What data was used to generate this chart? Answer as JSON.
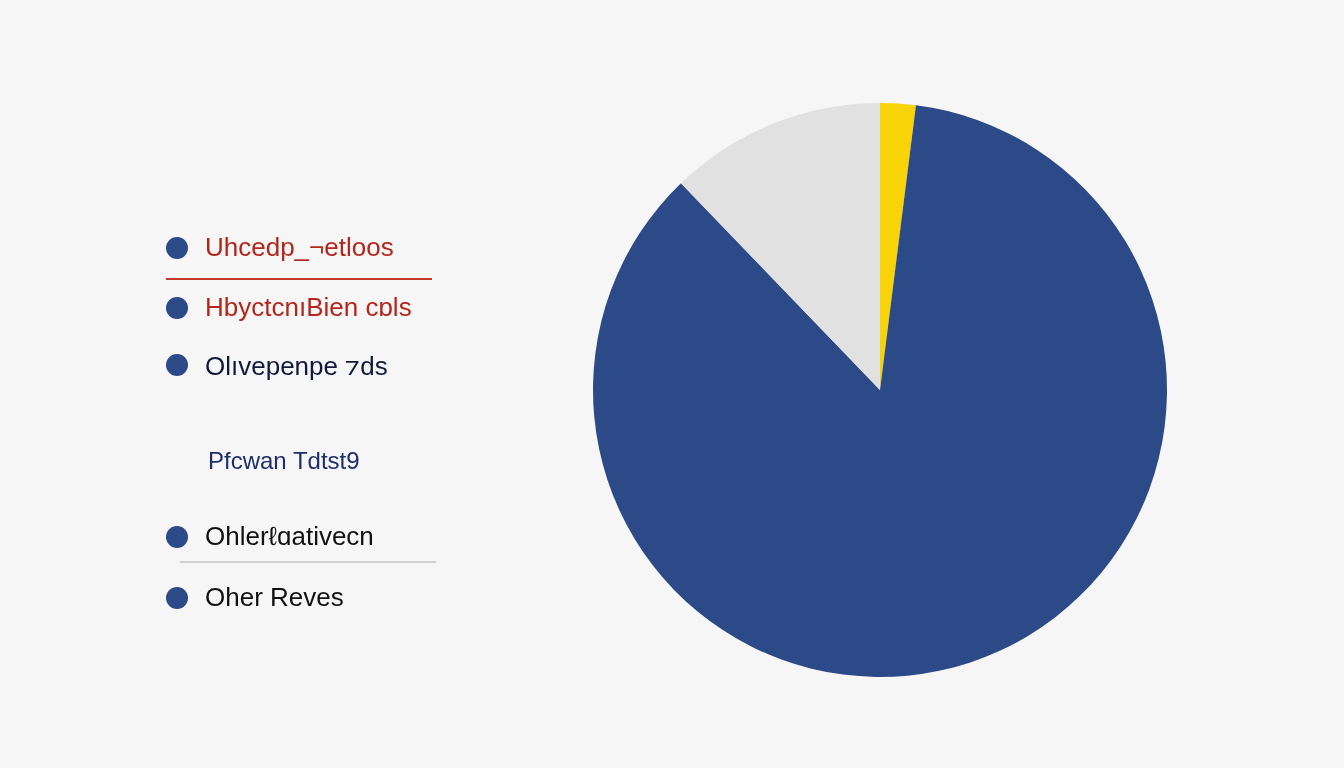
{
  "chart_data": {
    "type": "pie",
    "categories": [
      null,
      null,
      null
    ],
    "values": [
      2,
      85.8,
      12.2
    ],
    "colors": [
      "#f7d308",
      "#2b4a87",
      "#e1e1e1"
    ],
    "annotations": [
      "Uhcedp_¬etloos",
      "HbyctcnıBien cɒls",
      "Olıvepenpe ⁊ds",
      "Pfcwan Tdtst9",
      "Ohlerℓɑativecn",
      "Oher Reves"
    ]
  }
}
